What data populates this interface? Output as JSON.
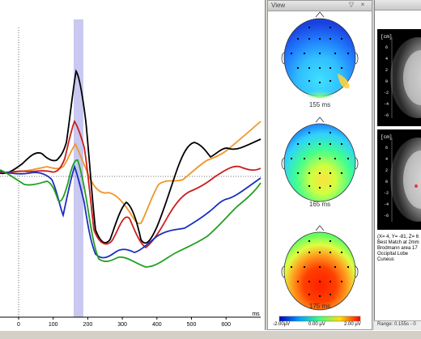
{
  "waveform": {
    "x_ticks": [
      "0",
      "100",
      "200",
      "300",
      "400",
      "500",
      "600"
    ],
    "x_unit": "ms",
    "colors": {
      "black": "#000000",
      "red": "#cc1f1f",
      "blue": "#1a2fbf",
      "green": "#22a022",
      "orange": "#f0962a",
      "highlight": "#c8c8f0"
    }
  },
  "topomap": {
    "title": "View",
    "maps": [
      {
        "label": "155 ms"
      },
      {
        "label": "165 ms"
      },
      {
        "label": "175 ms"
      }
    ],
    "colorbar": {
      "min": "-2.00µV",
      "mid": "0.00 µV",
      "max": "2.00 µV"
    }
  },
  "mri": {
    "unit_top": "[cm]",
    "unit_bottom": "[cm]",
    "info_lines": [
      "(X= 4, Y= -81, Z= 6",
      "Best Match at 2mm",
      "Brodmann area 17",
      "Occipital Lobe",
      "Cuneus"
    ],
    "range": "Range: 0.155s - 0"
  }
}
